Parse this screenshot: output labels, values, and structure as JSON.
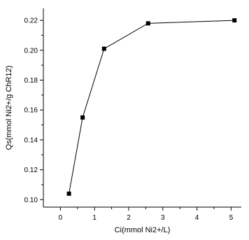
{
  "chart_data": {
    "type": "line",
    "title": "",
    "xlabel": "Ci(mmol Ni2+/L)",
    "ylabel": "Qs(mmol Ni2+/g ChR12)",
    "xlim": [
      -0.5,
      5.3
    ],
    "ylim": [
      0.095,
      0.228
    ],
    "x_ticks": [
      0,
      1,
      2,
      3,
      4,
      5
    ],
    "y_ticks": [
      0.1,
      0.12,
      0.14,
      0.16,
      0.18,
      0.2,
      0.22
    ],
    "x_tick_labels": [
      "0",
      "1",
      "2",
      "3",
      "4",
      "5"
    ],
    "y_tick_labels": [
      "0.10",
      "0.12",
      "0.14",
      "0.16",
      "0.18",
      "0.20",
      "0.22"
    ],
    "grid": false,
    "legend": "none",
    "series": [
      {
        "x": [
          0.25,
          0.65,
          1.28,
          2.57,
          5.1
        ],
        "y": [
          0.104,
          0.155,
          0.201,
          0.218,
          0.22
        ],
        "marker": "square",
        "color": "#000000"
      }
    ]
  }
}
